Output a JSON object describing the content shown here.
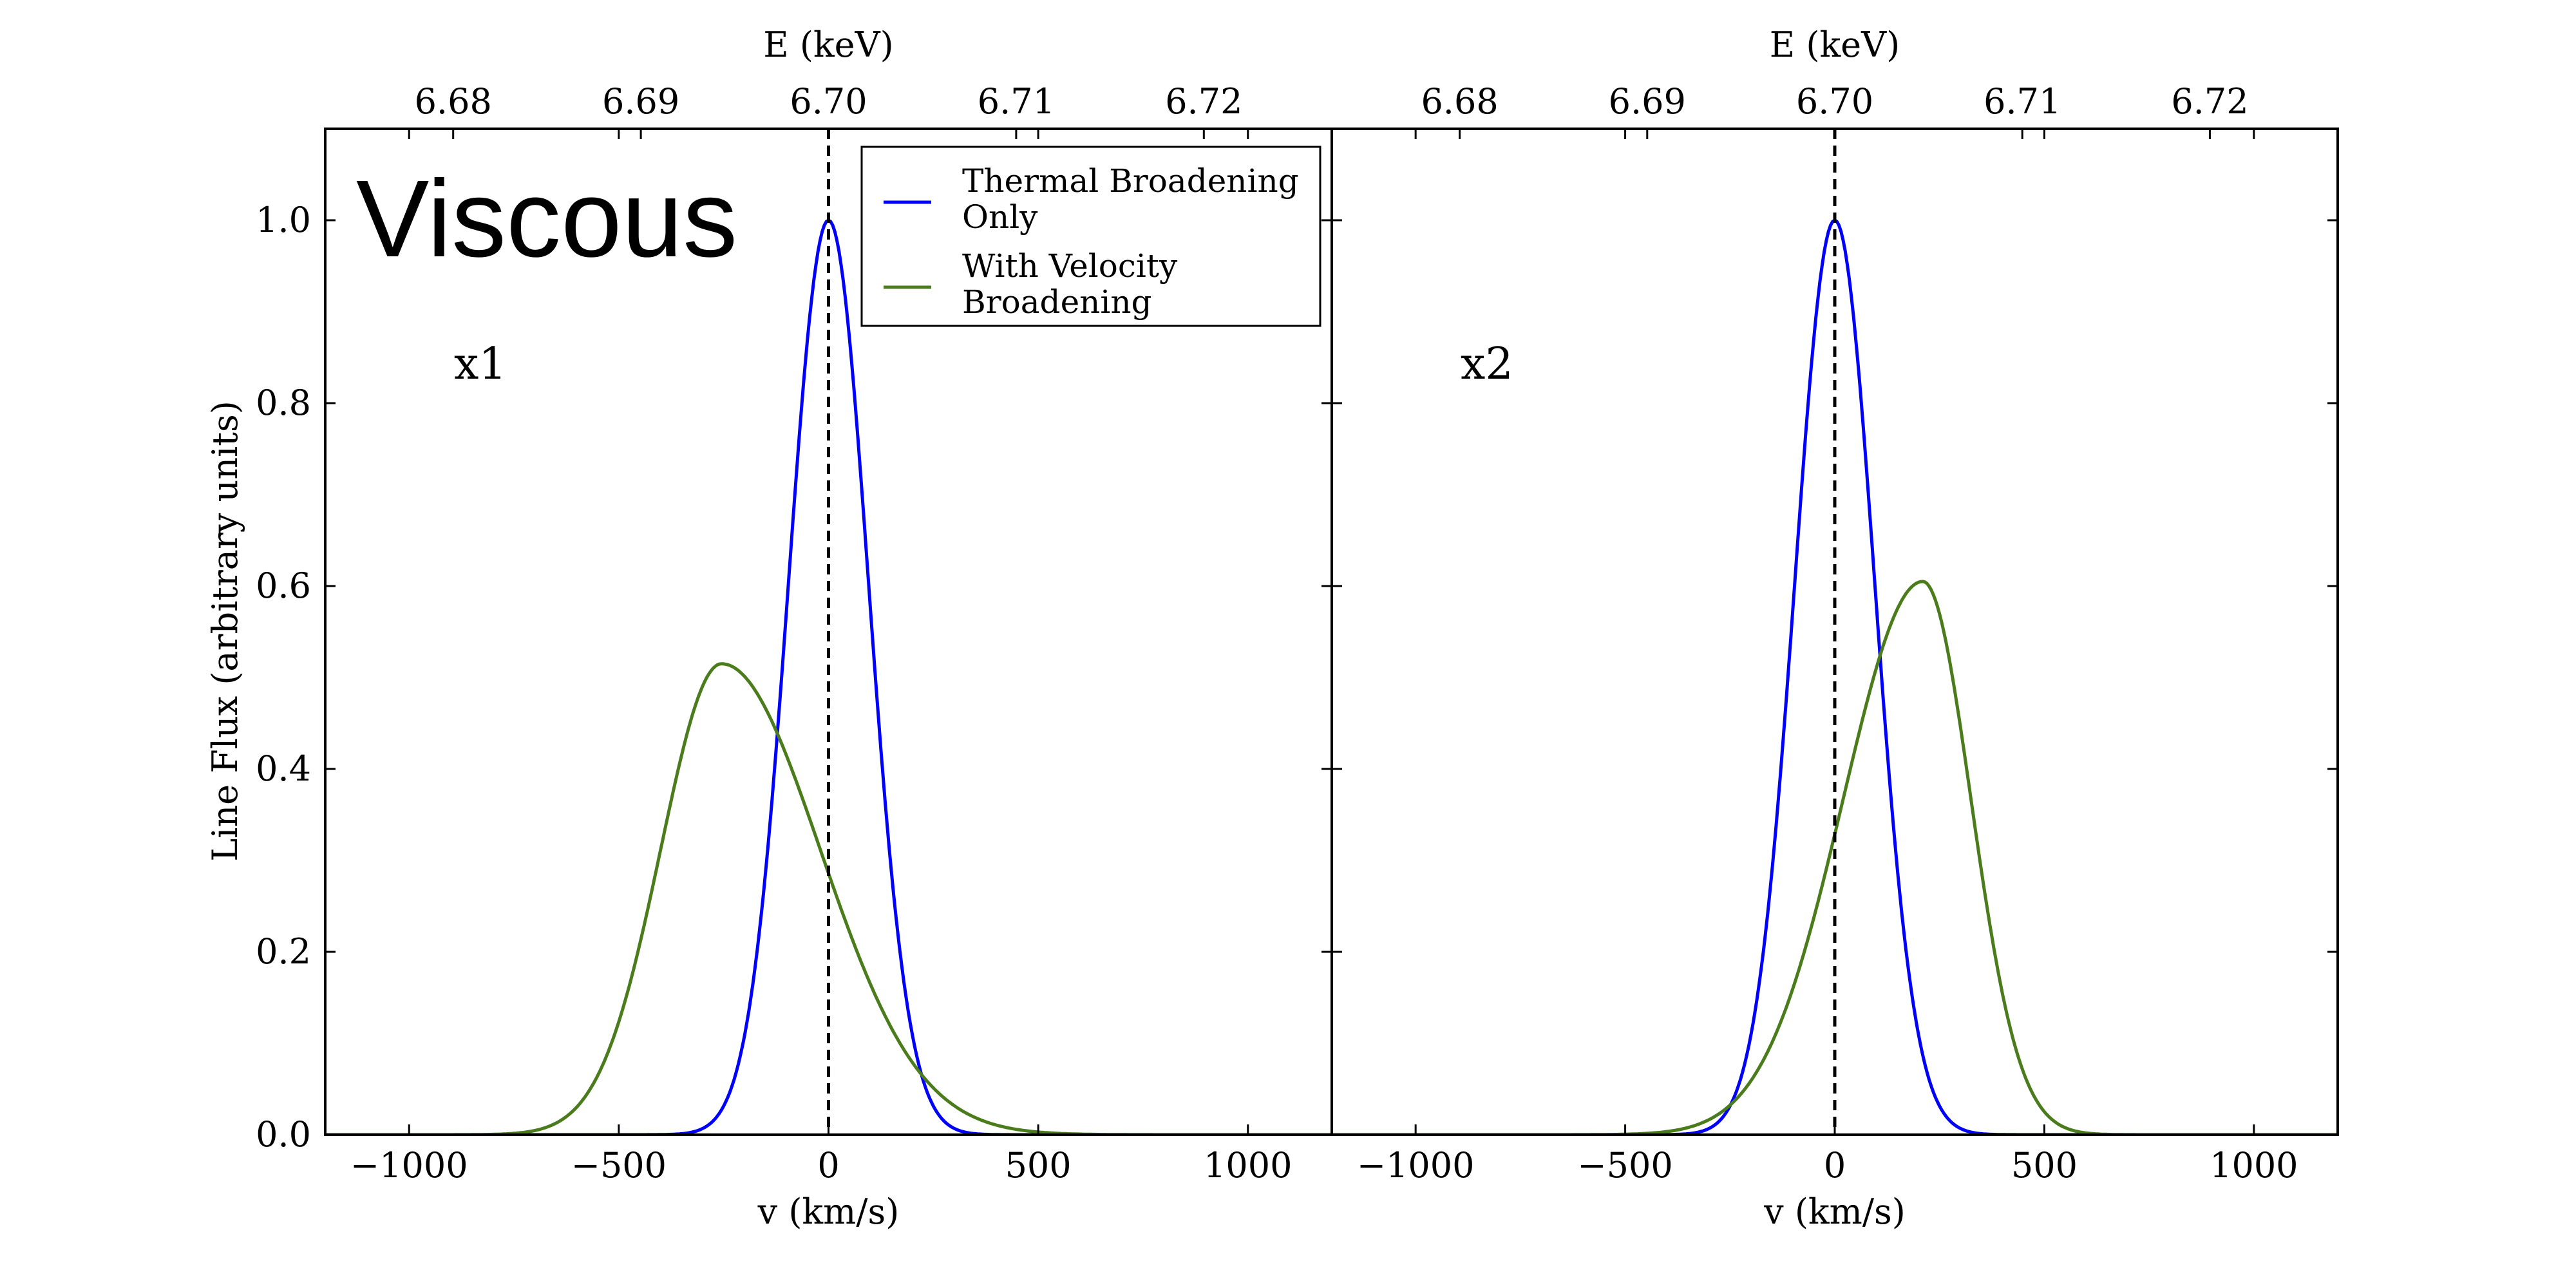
{
  "figure": {
    "title": "Viscous",
    "ylabel": "Line Flux (arbitrary units)",
    "legend": [
      {
        "label_lines": [
          "Thermal Broadening",
          "Only"
        ],
        "color": "#0000ff"
      },
      {
        "label_lines": [
          "With Velocity",
          "Broadening"
        ],
        "color": "#4a7c1c"
      }
    ],
    "reference_line": {
      "x": 0,
      "style": "dashed",
      "color": "#000000"
    }
  },
  "chart_data": [
    {
      "type": "line",
      "panel_label": "x1",
      "xlabel": "v (km/s)",
      "top_xlabel": "E (keV)",
      "ylabel": "Line Flux (arbitrary units)",
      "xlim": [
        -1200,
        1200
      ],
      "ylim": [
        0,
        1.1
      ],
      "x_ticks": [
        "−1000",
        "−500",
        "0",
        "500",
        "1000"
      ],
      "x_tick_values": [
        -1000,
        -500,
        0,
        500,
        1000
      ],
      "y_ticks": [
        "0.0",
        "0.2",
        "0.4",
        "0.6",
        "0.8",
        "1.0"
      ],
      "y_tick_values": [
        0,
        0.2,
        0.4,
        0.6,
        0.8,
        1.0
      ],
      "top_ticks": [
        "6.68",
        "6.69",
        "6.70",
        "6.71",
        "6.72"
      ],
      "top_tick_values": [
        6.68,
        6.69,
        6.7,
        6.71,
        6.72
      ],
      "grid": false,
      "legend_position": "top-right",
      "series": [
        {
          "name": "Thermal Broadening Only",
          "color": "#0000ff",
          "model": "gaussian",
          "amplitude": 1.0,
          "center": 0,
          "sigma": 95
        },
        {
          "name": "With Velocity Broadening",
          "color": "#4a7c1c",
          "model": "split_gaussian",
          "amplitude": 0.515,
          "center": -255,
          "sigma_left": 145,
          "sigma_right": 235
        }
      ]
    },
    {
      "type": "line",
      "panel_label": "x2",
      "xlabel": "v (km/s)",
      "top_xlabel": "E (keV)",
      "xlim": [
        -1200,
        1200
      ],
      "ylim": [
        0,
        1.1
      ],
      "x_ticks": [
        "−1000",
        "−500",
        "0",
        "500",
        "1000"
      ],
      "x_tick_values": [
        -1000,
        -500,
        0,
        500,
        1000
      ],
      "top_ticks": [
        "6.68",
        "6.69",
        "6.70",
        "6.71",
        "6.72"
      ],
      "top_tick_values": [
        6.68,
        6.69,
        6.7,
        6.71,
        6.72
      ],
      "grid": false,
      "series": [
        {
          "name": "Thermal Broadening Only",
          "color": "#0000ff",
          "model": "gaussian",
          "amplitude": 1.0,
          "center": 0,
          "sigma": 95
        },
        {
          "name": "With Velocity Broadening",
          "color": "#4a7c1c",
          "model": "split_gaussian",
          "amplitude": 0.605,
          "center": 210,
          "sigma_left": 190,
          "sigma_right": 115
        }
      ]
    }
  ]
}
